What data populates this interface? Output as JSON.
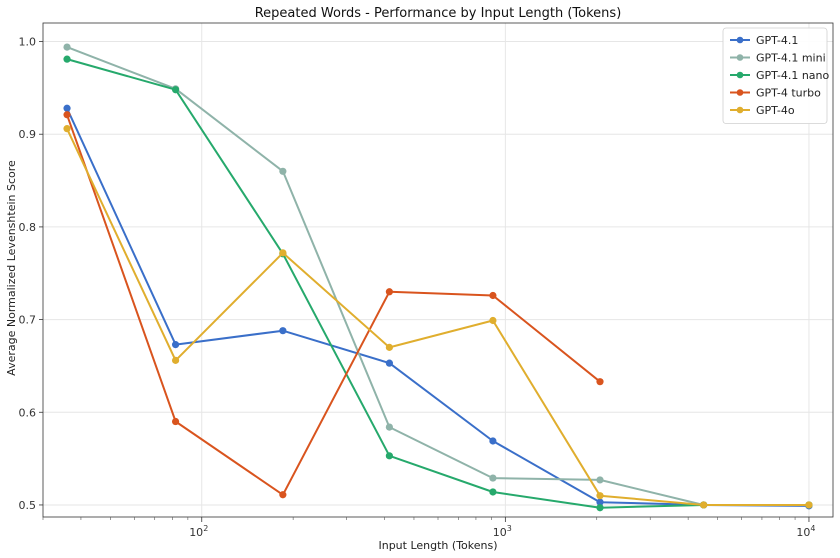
{
  "chart_data": {
    "type": "line",
    "title": "Repeated Words - Performance by Input Length (Tokens)",
    "xlabel": "Input Length (Tokens)",
    "ylabel": "Average Normalized Levenshtein Score",
    "xscale": "log",
    "xlim": [
      30,
      12000
    ],
    "ylim": [
      0.487,
      1.02
    ],
    "y_ticks": [
      "0.5",
      "0.6",
      "0.7",
      "0.8",
      "0.9",
      "1.0"
    ],
    "x_ticks": [
      {
        "base": "10",
        "exp": "2"
      },
      {
        "base": "10",
        "exp": "3"
      },
      {
        "base": "10",
        "exp": "4"
      }
    ],
    "grid": true,
    "legend_position": "top-right",
    "x": [
      36,
      82,
      185,
      415,
      910,
      2050,
      4500,
      10000
    ],
    "series": [
      {
        "name": "GPT-4.1",
        "color": "#3a6fc9",
        "values": [
          0.928,
          0.673,
          0.688,
          0.653,
          0.569,
          0.503,
          0.5,
          0.499
        ]
      },
      {
        "name": "GPT-4.1 mini",
        "color": "#8fb3a9",
        "values": [
          0.994,
          0.949,
          0.86,
          0.584,
          0.529,
          0.527,
          0.5,
          0.5
        ]
      },
      {
        "name": "GPT-4.1 nano",
        "color": "#26a96c",
        "values": [
          0.981,
          0.948,
          0.771,
          0.553,
          0.514,
          0.497,
          0.5,
          0.5
        ]
      },
      {
        "name": "GPT-4 turbo",
        "color": "#d9541e",
        "values": [
          0.921,
          0.59,
          0.511,
          0.73,
          0.726,
          0.633,
          null,
          null
        ]
      },
      {
        "name": "GPT-4o",
        "color": "#e0ae2e",
        "values": [
          0.906,
          0.656,
          0.772,
          0.67,
          0.699,
          0.51,
          0.5,
          0.5
        ]
      }
    ]
  }
}
